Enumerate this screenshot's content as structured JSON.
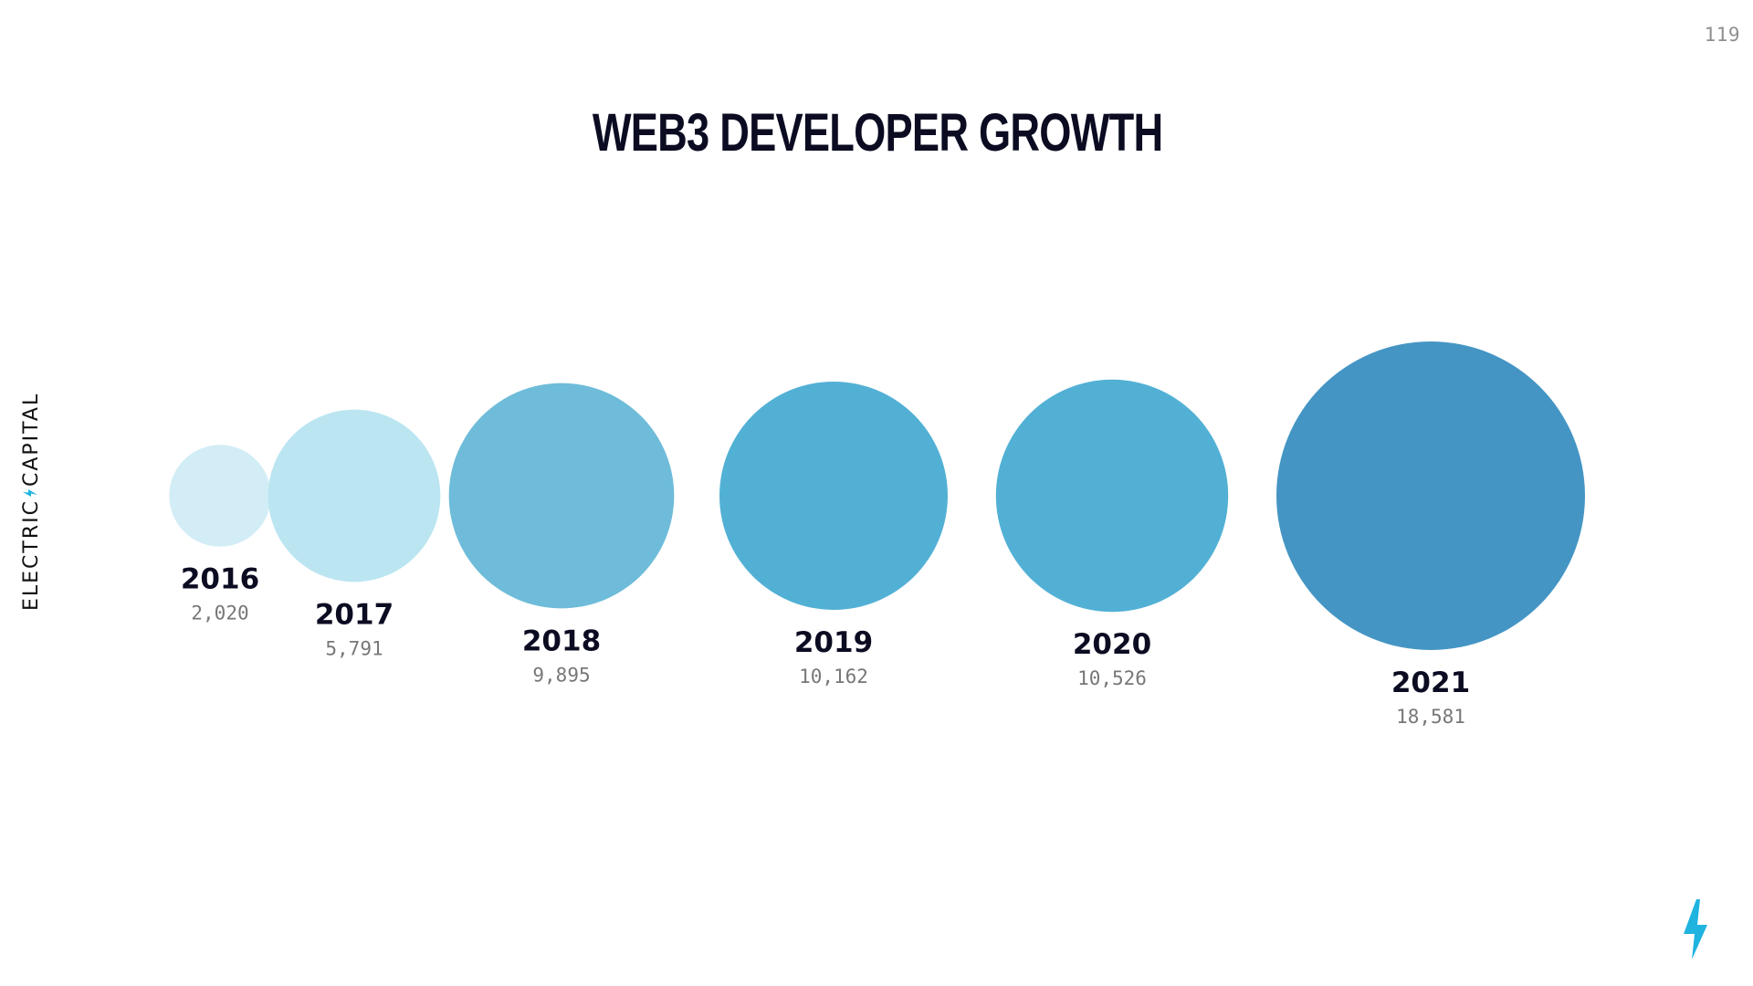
{
  "page_number": "119",
  "brand": {
    "left": "ELECTRIC",
    "right": "CAPITAL",
    "accent_color": "#1fb3e0"
  },
  "chart_data": {
    "type": "bubble",
    "title": "WEB3 DEVELOPER GROWTH",
    "categories": [
      "2016",
      "2017",
      "2018",
      "2019",
      "2020",
      "2021"
    ],
    "values": [
      2020,
      5791,
      9895,
      10162,
      10526,
      18581
    ],
    "value_labels": [
      "2,020",
      "5,791",
      "9,895",
      "10,162",
      "10,526",
      "18,581"
    ],
    "colors": [
      "#d3edf6",
      "#bbe5f1",
      "#6ebcd9",
      "#52b0d5",
      "#52b0d5",
      "#4495c4"
    ]
  },
  "icons": {
    "corner": "lightning-bolt-icon"
  }
}
